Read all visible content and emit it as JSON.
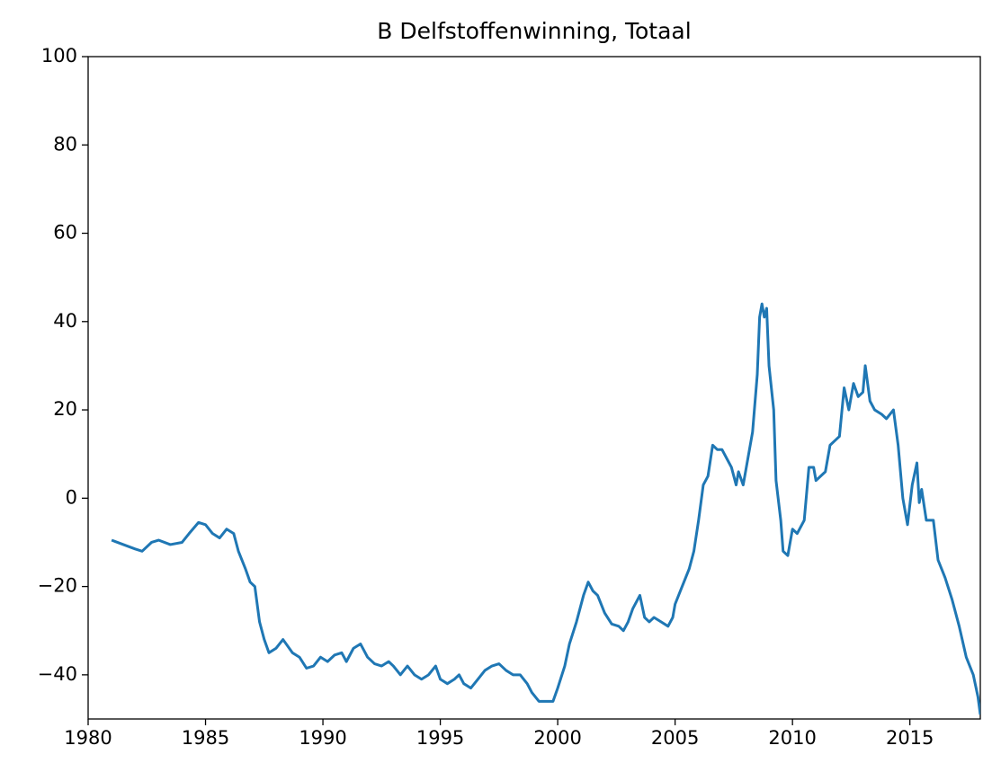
{
  "chart_data": {
    "type": "line",
    "title": "B Delfstoffenwinning, Totaal",
    "color": "#1f77b4",
    "xlim": [
      1980,
      2018
    ],
    "xticks": [
      1980,
      1985,
      1990,
      1995,
      2000,
      2005,
      2010,
      2015
    ],
    "ylim": [
      -50,
      100
    ],
    "yticks": [
      {
        "value": -40,
        "label": "−40"
      },
      {
        "value": -20,
        "label": "−20"
      },
      0,
      20,
      40,
      60,
      80,
      100
    ],
    "x": [
      1981.0,
      1981.5,
      1982.0,
      1982.3,
      1982.7,
      1983.0,
      1983.5,
      1984.0,
      1984.3,
      1984.7,
      1985.0,
      1985.3,
      1985.6,
      1985.9,
      1986.2,
      1986.4,
      1986.7,
      1986.9,
      1987.1,
      1987.3,
      1987.5,
      1987.7,
      1988.0,
      1988.3,
      1988.7,
      1989.0,
      1989.3,
      1989.6,
      1989.9,
      1990.2,
      1990.5,
      1990.8,
      1991.0,
      1991.3,
      1991.6,
      1991.9,
      1992.2,
      1992.5,
      1992.8,
      1993.0,
      1993.3,
      1993.6,
      1993.9,
      1994.2,
      1994.5,
      1994.8,
      1995.0,
      1995.3,
      1995.6,
      1995.8,
      1996.0,
      1996.3,
      1996.6,
      1996.9,
      1997.2,
      1997.5,
      1997.8,
      1998.1,
      1998.4,
      1998.7,
      1998.9,
      1999.2,
      1999.5,
      1999.8,
      2000.0,
      2000.3,
      2000.5,
      2000.8,
      2001.1,
      2001.3,
      2001.5,
      2001.7,
      2002.0,
      2002.3,
      2002.6,
      2002.8,
      2003.0,
      2003.2,
      2003.5,
      2003.7,
      2003.9,
      2004.1,
      2004.4,
      2004.7,
      2004.9,
      2005.0,
      2005.3,
      2005.6,
      2005.8,
      2006.0,
      2006.2,
      2006.4,
      2006.6,
      2006.8,
      2007.0,
      2007.2,
      2007.4,
      2007.6,
      2007.7,
      2007.9,
      2008.1,
      2008.3,
      2008.5,
      2008.6,
      2008.7,
      2008.8,
      2008.9,
      2009.0,
      2009.2,
      2009.3,
      2009.5,
      2009.6,
      2009.8,
      2010.0,
      2010.2,
      2010.5,
      2010.7,
      2010.9,
      2011.0,
      2011.2,
      2011.4,
      2011.6,
      2011.8,
      2012.0,
      2012.2,
      2012.4,
      2012.6,
      2012.8,
      2013.0,
      2013.1,
      2013.3,
      2013.5,
      2013.8,
      2014.0,
      2014.3,
      2014.5,
      2014.7,
      2014.9,
      2015.1,
      2015.3,
      2015.4,
      2015.5,
      2015.7,
      2016.0,
      2016.2,
      2016.5,
      2016.8,
      2017.1,
      2017.4,
      2017.7,
      2017.9,
      2018.0
    ],
    "values": [
      -9.5,
      -10.5,
      -11.5,
      -12,
      -10,
      -9.5,
      -10.5,
      -10,
      -8,
      -5.5,
      -6,
      -8,
      -9,
      -7,
      -8,
      -12,
      -16,
      -19,
      -20,
      -28,
      -32,
      -35,
      -34,
      -32,
      -35,
      -36,
      -38.5,
      -38,
      -36,
      -37,
      -35.5,
      -35,
      -37,
      -34,
      -33,
      -36,
      -37.5,
      -38,
      -37,
      -38,
      -40,
      -38,
      -40,
      -41,
      -40,
      -38,
      -41,
      -42,
      -41,
      -40,
      -42,
      -43,
      -41,
      -39,
      -38,
      -37.5,
      -39,
      -40,
      -40,
      -42,
      -44,
      -46,
      -46,
      -46,
      -43,
      -38,
      -33,
      -28,
      -22,
      -19,
      -21,
      -22,
      -26,
      -28.5,
      -29,
      -30,
      -28,
      -25,
      -22,
      -27,
      -28,
      -27,
      -28,
      -29,
      -27,
      -24,
      -20,
      -16,
      -12,
      -5,
      3,
      5,
      12,
      11,
      11,
      9,
      7,
      3,
      6,
      3,
      9,
      15,
      28,
      41,
      44,
      41,
      43,
      30,
      20,
      4,
      -5,
      -12,
      -13,
      -7,
      -8,
      -5,
      7,
      7,
      4,
      5,
      6,
      12,
      13,
      14,
      25,
      20,
      26,
      23,
      24,
      30,
      22,
      20,
      19,
      18,
      20,
      12,
      0,
      -6,
      3,
      8,
      -1,
      2,
      -5,
      -5,
      -14,
      -18,
      -23,
      -29,
      -36,
      -40,
      -45,
      -49
    ]
  }
}
